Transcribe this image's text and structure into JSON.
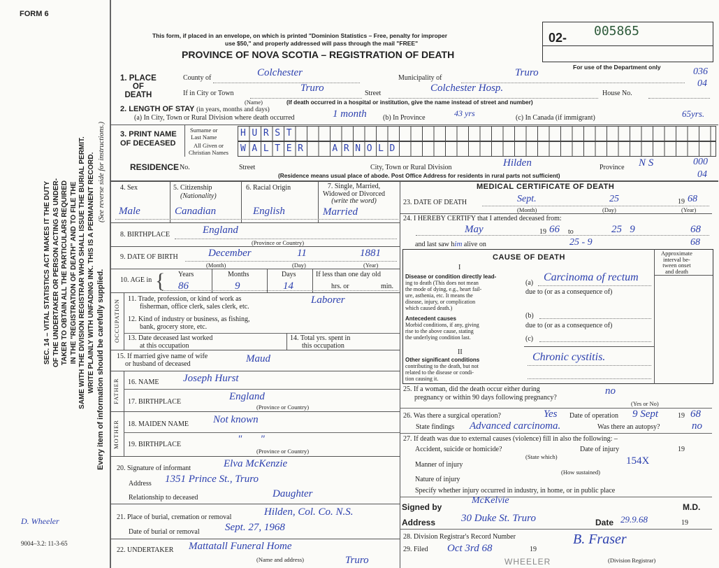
{
  "margin": {
    "form_no": "FORM 6",
    "statute": [
      "SEC. 14 – VITAL STATISTICS ACT MAKES IT THE DUTY",
      "OF THE UNDERTAKER OR PERSON ACTING AS UNDER-",
      "TAKER TO OBTAIN ALL THE PARTICULARS REQUIRED",
      "IN THE \"REGISTRATION OF DEATH\" AND TO FILE THE",
      "SAME WITH THE DIVISION REGISTRAR WHO SHALL ISSUE THE BURIAL PERMIT.",
      "WRITE PLAINLY WITH UNFADING INK. THIS IS A PERMANENT RECORD."
    ],
    "every_item": "Every item of information should be carefully supplied.",
    "see_reverse": "(See reverse side for instructions.)",
    "signature": "D. Wheeler",
    "print_code": "9004–3.2: 11-3-65"
  },
  "header": {
    "notice_1": "This form, if placed in an envelope, on which is printed \"Dominion Statistics – Free, penalty for improper",
    "notice_2": "use $50,\" and properly addressed will pass through the mail \"FREE\"",
    "title": "PROVINCE OF NOVA SCOTIA – REGISTRATION OF DEATH",
    "reg_prefix": "02-",
    "reg_number": "005865",
    "dept_only": "For use of the Department only",
    "codes": [
      "036",
      "04",
      "000",
      "04"
    ]
  },
  "place_of_death": {
    "label": [
      "1. PLACE",
      "OF",
      "DEATH"
    ],
    "county_label": "County of",
    "county": "Colchester",
    "municipality_label": "Municipality of",
    "municipality": "Truro",
    "city_label": "If in City or Town",
    "city": "Truro",
    "city_sub": "(Name)",
    "street_label": "Street",
    "street": "Colchester Hosp.",
    "house_label": "House No.",
    "note": "(If death occurred in a hospital or institution, give the name instead of street and number)"
  },
  "length_of_stay": {
    "label": "2. LENGTH OF STAY",
    "label_note": "(in years, months and days)",
    "a_label": "(a) In City, Town or Rural Division where death occurred",
    "a": "1 month",
    "b_label": "(b) In Province",
    "b": "43 yrs",
    "c_label": "(c) In Canada (if immigrant)",
    "c": "65yrs."
  },
  "name": {
    "label": [
      "3. PRINT NAME",
      "OF DECEASED"
    ],
    "surname_label": [
      "Surname or",
      "Last Name"
    ],
    "surname": "HURST",
    "given_label": [
      "All Given or",
      "Christian Names"
    ],
    "given": "WALTER  ARNOLD"
  },
  "residence": {
    "label": "RESIDENCE",
    "no_label": "No.",
    "street_label": "Street",
    "city_label": "City, Town or Rural Division",
    "city": "Hilden",
    "province_label": "Province",
    "province": "N S",
    "note": "(Residence means usual place of abode. Post Office Address for residents in rural parts not sufficient)"
  },
  "personal": {
    "sex_label": "4. Sex",
    "sex": "Male",
    "citizenship_label": "5. Citizenship",
    "citizenship_sub": "(Nationality)",
    "citizenship": "Canadian",
    "racial_label": "6. Racial Origin",
    "racial": "English",
    "marital_label": [
      "7. Single, Married,",
      "Widowed or Divorced",
      "(write the word)"
    ],
    "marital": "Married",
    "birthplace_label": "8. BIRTHPLACE",
    "birthplace": "England",
    "birthplace_sub": "(Province or Country)",
    "dob_label": "9. DATE OF BIRTH",
    "dob_month": "December",
    "dob_day": "11",
    "dob_year": "1881",
    "month_sub": "(Month)",
    "day_sub": "(Day)",
    "year_sub": "(Year)",
    "age_label": "10. AGE in",
    "years_label": "Years",
    "years": "86",
    "months_label": "Months",
    "months": "9",
    "days_label": "Days",
    "days": "14",
    "less_day_label": "If less than one day old",
    "hrs_label": "hrs. or",
    "min_label": "min."
  },
  "occupation": {
    "side_label": "OCCUPATION",
    "trade_label": [
      "11. Trade, profession, or kind of work as",
      "fisherman, office clerk, sales clerk, etc."
    ],
    "trade": "Laborer",
    "industry_label": [
      "12. Kind of industry or business, as fishing,",
      "bank, grocery store, etc."
    ],
    "last_worked_label": [
      "13. Date deceased last worked",
      "at this occupation"
    ],
    "total_yrs_label": [
      "14. Total yrs. spent in",
      "this occupation"
    ]
  },
  "spouse": {
    "label": [
      "15. If married give name of wife",
      "or husband of deceased"
    ],
    "value": "Maud"
  },
  "father": {
    "side_label": "FATHER",
    "name_label": "16. NAME",
    "name": "Joseph Hurst",
    "birthplace_label": "17. BIRTHPLACE",
    "birthplace": "England",
    "sub": "(Province or Country)"
  },
  "mother": {
    "side_label": "MOTHER",
    "maiden_label": "18. MAIDEN NAME",
    "maiden": "Not known",
    "birthplace_label": "19. BIRTHPLACE",
    "birthplace": "\"       \"",
    "sub": "(Province or Country)"
  },
  "informant": {
    "sig_label": "20. Signature of informant",
    "sig": "Elva McKenzie",
    "address_label": "Address",
    "address": "1351 Prince St., Truro",
    "relationship_label": "Relationship to deceased",
    "relationship": "Daughter"
  },
  "burial": {
    "place_label": "21. Place of burial, cremation or removal",
    "place": "Hilden, Col. Co. N.S.",
    "date_label": "Date of burial or removal",
    "date": "Sept. 27, 1968"
  },
  "undertaker": {
    "label": "22. UNDERTAKER",
    "value": "Mattatall Funeral Home",
    "value_2": "Truro",
    "sub": "(Name and address)"
  },
  "medical": {
    "title": "MEDICAL CERTIFICATE OF DEATH",
    "dod_label": "23. DATE OF DEATH",
    "dod_month": "Sept.",
    "dod_day": "25",
    "dod_year_prefix": "19",
    "dod_year": "68",
    "certify_label": "24. I HEREBY CERTIFY that I attended deceased from:",
    "from": "May",
    "from_year": "66",
    "to_label": "to",
    "to": "25   9",
    "to_year": "68",
    "last_saw_label": "and last saw h",
    "last_saw_him": "im",
    "alive_label": "alive on",
    "last_saw": "25 - 9",
    "last_saw_year": "68"
  },
  "cause": {
    "title": "CAUSE OF DEATH",
    "interval_label": [
      "Approximate",
      "interval be-",
      "tween onset",
      "and death"
    ],
    "part_i": "I",
    "direct_label": [
      "Disease or condition directly lead-",
      "ing to death (This does not mean",
      "the mode of dying, e.g., heart fail-",
      "ure, asthenia, etc. It means the",
      "disease, injury, or complication",
      "which caused death.)"
    ],
    "a_label": "(a)",
    "a": "Carcinoma of rectum",
    "due_to": "due to (or as a consequence of)",
    "antecedent_label": [
      "Antecedent causes",
      "Morbid conditions, if any, giving",
      "rise to the above cause, stating",
      "the underlying condition last."
    ],
    "b_label": "(b)",
    "c_label": "(c)",
    "part_ii": "II",
    "other_label": [
      "Other significant conditions",
      "contributing to the death, but not",
      "related to the disease or condi-",
      "tion causing it."
    ],
    "other": "Chronic cystitis."
  },
  "q25": {
    "label": [
      "25. If a woman, did the death occur either during",
      "pregnancy or within 90 days following pregnancy?"
    ],
    "value": "no",
    "sub": "(Yes or No)"
  },
  "q26": {
    "label": "26. Was there a surgical operation?",
    "value": "Yes",
    "date_label": "Date of operation",
    "date": "9 Sept",
    "year_prefix": "19",
    "year": "68",
    "findings_label": "State findings",
    "findings": "Advanced carcinoma.",
    "autopsy_label": "Was there an autopsy?",
    "autopsy": "no"
  },
  "q27": {
    "label": "27. If death was due to external causes (violence) fill in also the following: –",
    "accident_label": "Accident, suicide or homicide?",
    "state_which": "(State which)",
    "injury_date_label": "Date of injury",
    "year_prefix": "19",
    "manner_label": "Manner of injury",
    "manner": "154X",
    "how": "(How sustained)",
    "nature_label": "Nature of injury",
    "specify_label": "Specify whether injury occurred in industry, in home, or in public place"
  },
  "signed": {
    "label": "Signed by",
    "value": "McKelvie",
    "md": "M.D.",
    "address_label": "Address",
    "address": "30 Duke St. Truro",
    "date_label": "Date",
    "date": "29.9.68",
    "year_prefix": "19"
  },
  "registrar": {
    "record_label": "28. Division Registrar's Record Number",
    "filed_label": "29. Filed",
    "filed": "Oct 3rd 68",
    "year_prefix": "19",
    "signature": "B. Fraser",
    "sub": "(Division Registrar)",
    "stamp": "WHEELER"
  }
}
